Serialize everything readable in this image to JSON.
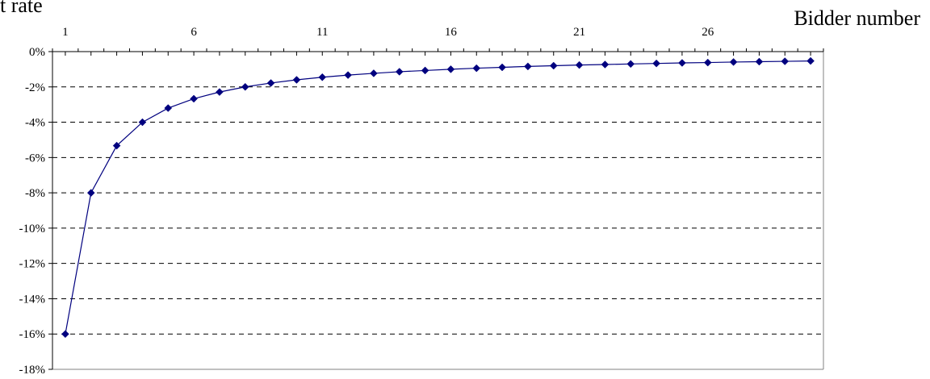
{
  "chart_data": {
    "type": "line",
    "ylabel": "t rate",
    "xlabel": "Bidder number",
    "x_tick_labels": [
      "1",
      "6",
      "11",
      "16",
      "21",
      "26"
    ],
    "y_tick_labels": [
      "0%",
      "-2%",
      "-4%",
      "-6%",
      "-8%",
      "-10%",
      "-12%",
      "-14%",
      "-16%",
      "-18%"
    ],
    "ylim": [
      -18,
      0
    ],
    "xlim": [
      0.5,
      30.5
    ],
    "grid": "horizontal dashed",
    "colors": {
      "series": "#00007f",
      "grid": "#000000",
      "axis": "#000000"
    },
    "x": [
      1,
      2,
      3,
      4,
      5,
      6,
      7,
      8,
      9,
      10,
      11,
      12,
      13,
      14,
      15,
      16,
      17,
      18,
      19,
      20,
      21,
      22,
      23,
      24,
      25,
      26,
      27,
      28,
      29,
      30
    ],
    "series": [
      {
        "values": [
          -16.0,
          -8.0,
          -5.33,
          -4.0,
          -3.2,
          -2.67,
          -2.29,
          -2.0,
          -1.78,
          -1.6,
          -1.45,
          -1.33,
          -1.23,
          -1.14,
          -1.07,
          -1.0,
          -0.94,
          -0.89,
          -0.84,
          -0.8,
          -0.76,
          -0.73,
          -0.7,
          -0.67,
          -0.64,
          -0.62,
          -0.59,
          -0.57,
          -0.55,
          -0.53
        ]
      }
    ]
  }
}
